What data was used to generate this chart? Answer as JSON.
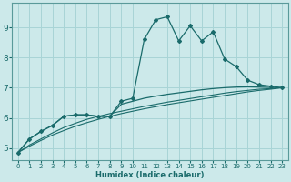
{
  "xlabel": "Humidex (Indice chaleur)",
  "bg_color": "#cce9ea",
  "grid_color": "#a8d4d6",
  "line_color": "#1a6b6b",
  "xlim": [
    -0.5,
    23.5
  ],
  "ylim": [
    4.6,
    9.8
  ],
  "xticks": [
    0,
    1,
    2,
    3,
    4,
    5,
    6,
    7,
    8,
    9,
    10,
    11,
    12,
    13,
    14,
    15,
    16,
    17,
    18,
    19,
    20,
    21,
    22,
    23
  ],
  "yticks": [
    5,
    6,
    7,
    8,
    9
  ],
  "series": {
    "line1_x": [
      0,
      1,
      2,
      3,
      4,
      5,
      6,
      7,
      8,
      9,
      10,
      11,
      12,
      13,
      14,
      15,
      16,
      17,
      18,
      19,
      20,
      21,
      22,
      23
    ],
    "line1_y": [
      4.85,
      5.3,
      5.55,
      5.75,
      6.05,
      6.1,
      6.1,
      6.05,
      6.05,
      6.55,
      6.65,
      8.6,
      9.25,
      9.35,
      8.55,
      9.05,
      8.55,
      8.85,
      7.95,
      7.7,
      7.25,
      7.1,
      7.05,
      7.0
    ],
    "line2_x": [
      0,
      1,
      2,
      3,
      4,
      5,
      6,
      7,
      8,
      9,
      10,
      11,
      12,
      13,
      14,
      15,
      16,
      17,
      18,
      19,
      20,
      21,
      22,
      23
    ],
    "line2_y": [
      4.85,
      5.3,
      5.55,
      5.75,
      6.05,
      6.1,
      6.1,
      6.05,
      6.05,
      6.45,
      6.55,
      6.65,
      6.72,
      6.78,
      6.83,
      6.88,
      6.93,
      6.97,
      7.0,
      7.02,
      7.03,
      7.02,
      7.01,
      7.0
    ],
    "line3_x": [
      0,
      1,
      2,
      3,
      4,
      5,
      6,
      7,
      8,
      9,
      10,
      11,
      12,
      13,
      14,
      15,
      16,
      17,
      18,
      19,
      20,
      21,
      22,
      23
    ],
    "line3_y": [
      4.85,
      5.1,
      5.3,
      5.5,
      5.68,
      5.82,
      5.95,
      6.05,
      6.14,
      6.22,
      6.3,
      6.38,
      6.45,
      6.52,
      6.58,
      6.64,
      6.7,
      6.76,
      6.82,
      6.87,
      6.91,
      6.95,
      6.97,
      7.0
    ],
    "line4_x": [
      0,
      1,
      2,
      3,
      4,
      5,
      6,
      7,
      8,
      9,
      10,
      11,
      12,
      13,
      14,
      15,
      16,
      17,
      18,
      19,
      20,
      21,
      22,
      23
    ],
    "line4_y": [
      4.85,
      5.06,
      5.25,
      5.43,
      5.58,
      5.72,
      5.84,
      5.95,
      6.05,
      6.14,
      6.22,
      6.3,
      6.37,
      6.44,
      6.5,
      6.56,
      6.62,
      6.68,
      6.74,
      6.8,
      6.86,
      6.91,
      6.95,
      7.0
    ]
  }
}
